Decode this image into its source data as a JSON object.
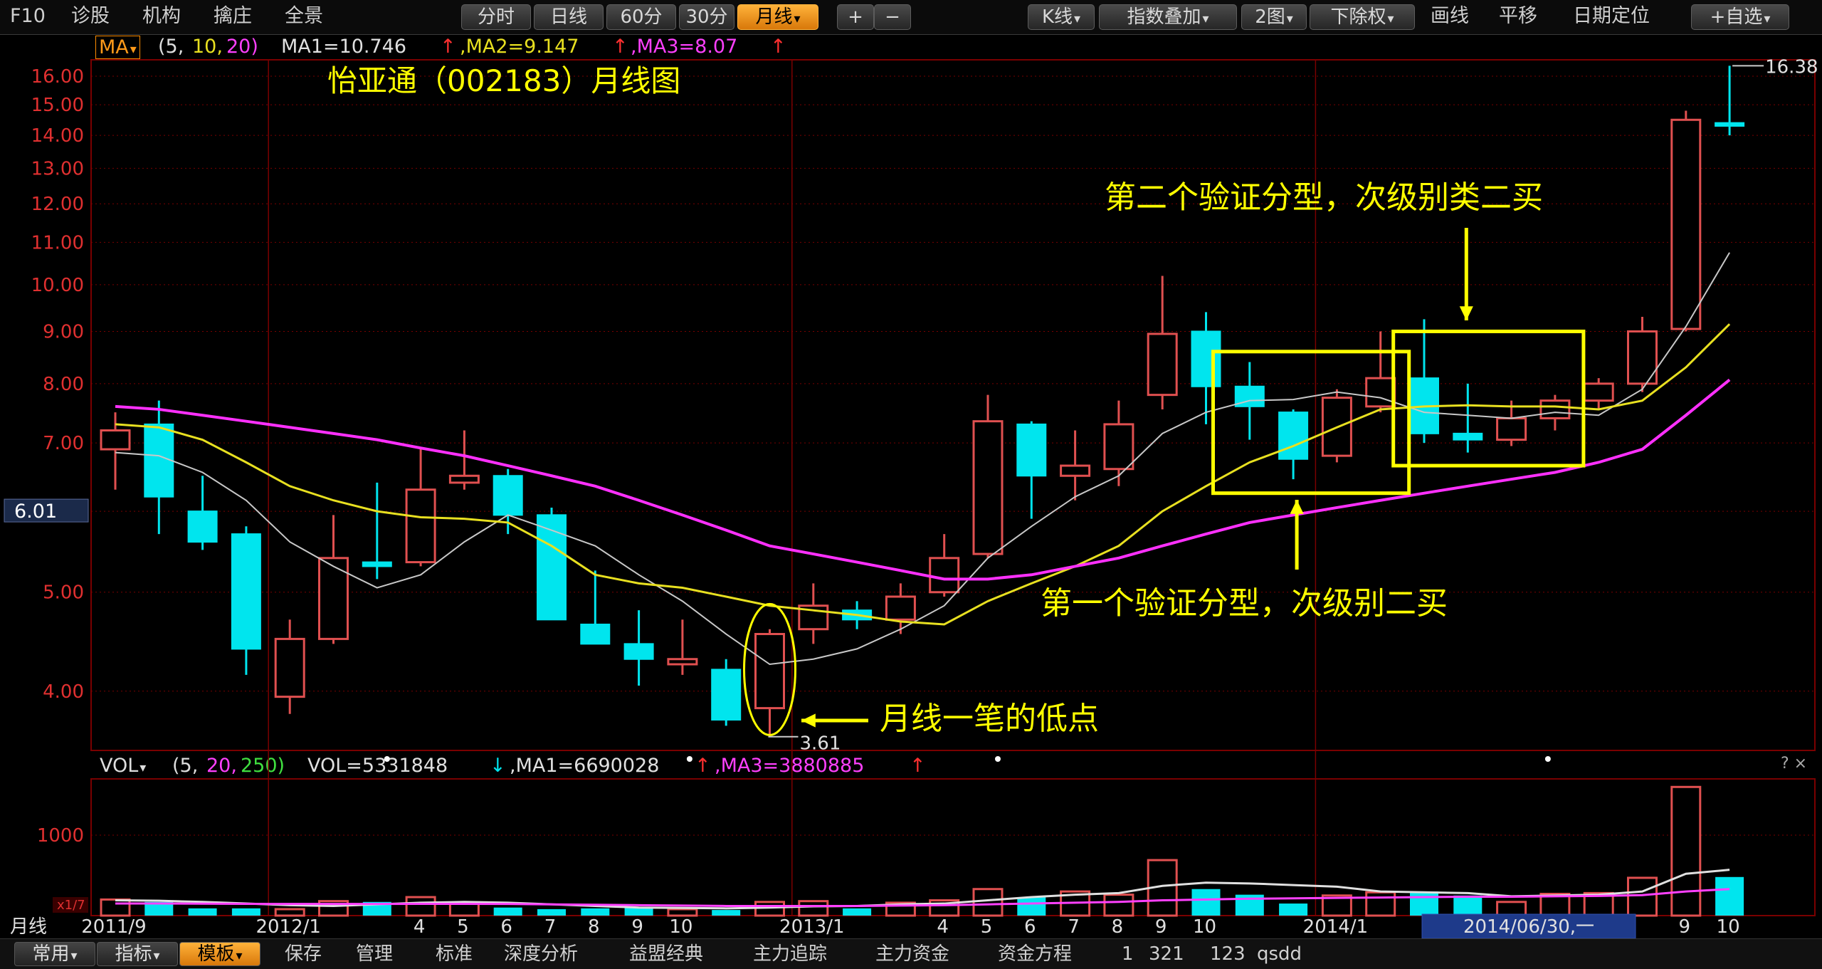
{
  "toolbar": {
    "left_items": [
      "F10",
      "诊股",
      "机构",
      "擒庄",
      "全景"
    ],
    "periods": [
      "分时",
      "日线",
      "60分",
      "30分",
      "月线"
    ],
    "active_period": "月线",
    "zoom_buttons": [
      "+",
      "−"
    ],
    "right_items": [
      "K线",
      "指数叠加",
      "2图",
      "下除权",
      "画线",
      "平移",
      "日期定位",
      "+自选"
    ]
  },
  "ma_info": {
    "badge": "MA",
    "params_prefix": "(5,",
    "param2": "10,",
    "param3": "20)",
    "ma1": "MA1=10.746",
    "ma2": ",MA2=9.147",
    "ma3": ",MA3=8.07",
    "arrow": "↑"
  },
  "vol_info": {
    "label": "VOL",
    "params_prefix": "(5,",
    "param2": "20,",
    "param3": "250)",
    "vol": "VOL=5331848",
    "vol_arrow": "↓",
    "ma1": ",MA1=6690028",
    "ma3": ",MA3=3880885",
    "arrow": "↑",
    "corner": "? ×"
  },
  "bottombar": {
    "buttons": [
      "常用",
      "指标",
      "模板"
    ],
    "active_button": "模板",
    "items": [
      "保存",
      "管理",
      "标准",
      "深度分析",
      "益盟经典",
      "主力追踪",
      "主力资金",
      "资金方程",
      "1",
      "321",
      "123",
      "qsdd"
    ]
  },
  "colors": {
    "up": "#e05050",
    "down": "#00e5ee",
    "ma1": "#c8c8c8",
    "ma2": "#e8e020",
    "ma3": "#ff30ff",
    "annotation": "#ffff00",
    "grid": "#7a0000",
    "price_label": "#e03030"
  },
  "chart_data": {
    "type": "candlestick",
    "title": "怡亚通（002183）月线图",
    "y_scale": "log",
    "ylim": [
      3.5,
      16.6
    ],
    "y_ticks": [
      "4.00",
      "5.00",
      "6.00",
      "7.00",
      "8.00",
      "9.00",
      "10.00",
      "11.00",
      "12.00",
      "13.00",
      "14.00",
      "15.00",
      "16.00"
    ],
    "current_price_label": "6.01",
    "high_label": "16.38",
    "low_label": "3.61",
    "x_labels": [
      {
        "i": 0,
        "text": "2011/9"
      },
      {
        "i": 4,
        "text": "2012/1"
      },
      {
        "i": 7,
        "text": "4"
      },
      {
        "i": 8,
        "text": "5"
      },
      {
        "i": 9,
        "text": "6"
      },
      {
        "i": 10,
        "text": "7"
      },
      {
        "i": 11,
        "text": "8"
      },
      {
        "i": 12,
        "text": "9"
      },
      {
        "i": 13,
        "text": "10"
      },
      {
        "i": 16,
        "text": "2013/1"
      },
      {
        "i": 19,
        "text": "4"
      },
      {
        "i": 20,
        "text": "5"
      },
      {
        "i": 21,
        "text": "6"
      },
      {
        "i": 22,
        "text": "7"
      },
      {
        "i": 23,
        "text": "8"
      },
      {
        "i": 24,
        "text": "9"
      },
      {
        "i": 25,
        "text": "10"
      },
      {
        "i": 28,
        "text": "2014/1"
      },
      {
        "i": 36,
        "text": "9"
      },
      {
        "i": 37,
        "text": "10"
      }
    ],
    "x_bottom_label": "月线",
    "cursor_date": "2014/06/30,一",
    "candles": [
      {
        "o": 6.9,
        "h": 7.5,
        "l": 6.3,
        "c": 7.2
      },
      {
        "o": 7.3,
        "h": 7.7,
        "l": 5.7,
        "c": 6.2
      },
      {
        "o": 6.0,
        "h": 6.5,
        "l": 5.5,
        "c": 5.6
      },
      {
        "o": 5.7,
        "h": 5.8,
        "l": 4.15,
        "c": 4.4
      },
      {
        "o": 3.95,
        "h": 4.7,
        "l": 3.8,
        "c": 4.5
      },
      {
        "o": 4.5,
        "h": 5.95,
        "l": 4.45,
        "c": 5.4
      },
      {
        "o": 5.35,
        "h": 6.4,
        "l": 5.15,
        "c": 5.3
      },
      {
        "o": 5.35,
        "h": 6.9,
        "l": 5.3,
        "c": 6.3
      },
      {
        "o": 6.4,
        "h": 7.2,
        "l": 6.3,
        "c": 6.5
      },
      {
        "o": 6.5,
        "h": 6.6,
        "l": 5.7,
        "c": 5.95
      },
      {
        "o": 5.95,
        "h": 6.05,
        "l": 4.7,
        "c": 4.7
      },
      {
        "o": 4.65,
        "h": 5.25,
        "l": 4.45,
        "c": 4.45
      },
      {
        "o": 4.45,
        "h": 4.8,
        "l": 4.05,
        "c": 4.3
      },
      {
        "o": 4.25,
        "h": 4.7,
        "l": 4.15,
        "c": 4.3
      },
      {
        "o": 4.2,
        "h": 4.3,
        "l": 3.7,
        "c": 3.75
      },
      {
        "o": 3.85,
        "h": 4.6,
        "l": 3.61,
        "c": 4.55
      },
      {
        "o": 4.6,
        "h": 5.1,
        "l": 4.45,
        "c": 4.85
      },
      {
        "o": 4.8,
        "h": 4.9,
        "l": 4.6,
        "c": 4.7
      },
      {
        "o": 4.7,
        "h": 5.1,
        "l": 4.55,
        "c": 4.95
      },
      {
        "o": 5.0,
        "h": 5.7,
        "l": 4.95,
        "c": 5.4
      },
      {
        "o": 5.45,
        "h": 7.8,
        "l": 5.4,
        "c": 7.35
      },
      {
        "o": 7.3,
        "h": 7.35,
        "l": 5.9,
        "c": 6.5
      },
      {
        "o": 6.5,
        "h": 7.2,
        "l": 6.15,
        "c": 6.65
      },
      {
        "o": 6.6,
        "h": 7.7,
        "l": 6.35,
        "c": 7.3
      },
      {
        "o": 7.8,
        "h": 10.2,
        "l": 7.55,
        "c": 8.95
      },
      {
        "o": 9.0,
        "h": 9.4,
        "l": 7.3,
        "c": 7.95
      },
      {
        "o": 7.95,
        "h": 8.4,
        "l": 7.05,
        "c": 7.6
      },
      {
        "o": 7.5,
        "h": 7.55,
        "l": 6.45,
        "c": 6.75
      },
      {
        "o": 6.8,
        "h": 7.9,
        "l": 6.7,
        "c": 7.75
      },
      {
        "o": 7.6,
        "h": 9.0,
        "l": 7.5,
        "c": 8.1
      },
      {
        "o": 8.1,
        "h": 9.25,
        "l": 7.0,
        "c": 7.15
      },
      {
        "o": 7.15,
        "h": 8.0,
        "l": 6.85,
        "c": 7.05
      },
      {
        "o": 7.05,
        "h": 7.7,
        "l": 6.95,
        "c": 7.4
      },
      {
        "o": 7.4,
        "h": 7.8,
        "l": 7.2,
        "c": 7.7
      },
      {
        "o": 7.7,
        "h": 8.1,
        "l": 7.55,
        "c": 8.0
      },
      {
        "o": 8.0,
        "h": 9.3,
        "l": 7.85,
        "c": 9.0
      },
      {
        "o": 9.05,
        "h": 14.8,
        "l": 9.0,
        "c": 14.5
      },
      {
        "o": 14.4,
        "h": 16.38,
        "l": 14.0,
        "c": 14.3
      }
    ],
    "ma_series": [
      {
        "name": "MA1",
        "values": [
          6.85,
          6.8,
          6.55,
          6.15,
          5.6,
          5.3,
          5.05,
          5.2,
          5.6,
          5.95,
          5.75,
          5.55,
          5.2,
          4.9,
          4.55,
          4.25,
          4.3,
          4.4,
          4.6,
          4.85,
          5.4,
          5.8,
          6.2,
          6.5,
          7.15,
          7.5,
          7.7,
          7.72,
          7.85,
          7.75,
          7.5,
          7.45,
          7.4,
          7.5,
          7.45,
          7.9,
          9.1,
          10.75
        ]
      },
      {
        "name": "MA2",
        "values": [
          7.3,
          7.25,
          7.05,
          6.7,
          6.35,
          6.15,
          6.0,
          5.92,
          5.9,
          5.85,
          5.55,
          5.2,
          5.1,
          5.05,
          4.95,
          4.85,
          4.8,
          4.75,
          4.68,
          4.65,
          4.9,
          5.1,
          5.3,
          5.55,
          6.0,
          6.35,
          6.7,
          6.95,
          7.25,
          7.55,
          7.6,
          7.62,
          7.6,
          7.6,
          7.55,
          7.7,
          8.3,
          9.15
        ]
      },
      {
        "name": "MA3",
        "values": [
          7.6,
          7.55,
          7.45,
          7.35,
          7.25,
          7.15,
          7.05,
          6.92,
          6.8,
          6.65,
          6.5,
          6.35,
          6.15,
          5.95,
          5.75,
          5.55,
          5.45,
          5.35,
          5.25,
          5.15,
          5.15,
          5.2,
          5.3,
          5.4,
          5.55,
          5.7,
          5.85,
          5.95,
          6.05,
          6.15,
          6.25,
          6.35,
          6.45,
          6.55,
          6.7,
          6.9,
          7.45,
          8.07
        ]
      }
    ],
    "volume": {
      "y_tick": "1000",
      "bottom_tick": "x1/7",
      "values": [
        200,
        170,
        90,
        90,
        80,
        180,
        170,
        230,
        160,
        100,
        80,
        90,
        100,
        80,
        70,
        170,
        180,
        90,
        160,
        190,
        330,
        230,
        300,
        260,
        690,
        330,
        260,
        150,
        250,
        290,
        300,
        250,
        170,
        270,
        280,
        470,
        1600,
        480
      ],
      "ma_lines": [
        {
          "name": "VOL-MA1",
          "values": [
            190,
            185,
            170,
            150,
            130,
            120,
            140,
            160,
            170,
            160,
            140,
            120,
            100,
            95,
            90,
            100,
            115,
            120,
            140,
            150,
            190,
            230,
            260,
            280,
            370,
            410,
            400,
            380,
            360,
            300,
            290,
            280,
            240,
            250,
            260,
            300,
            520,
            570
          ]
        },
        {
          "name": "VOL-MA3",
          "values": [
            150,
            150,
            148,
            146,
            145,
            145,
            145,
            146,
            146,
            145,
            140,
            135,
            130,
            125,
            120,
            120,
            120,
            120,
            125,
            130,
            140,
            150,
            160,
            170,
            190,
            200,
            210,
            215,
            220,
            225,
            230,
            235,
            235,
            240,
            245,
            255,
            300,
            330
          ]
        }
      ]
    },
    "annotations": [
      {
        "text": "第二个验证分型，次级别类二买"
      },
      {
        "text": "第一个验证分型，次级别二买"
      },
      {
        "text": "月线一笔的低点"
      }
    ]
  }
}
